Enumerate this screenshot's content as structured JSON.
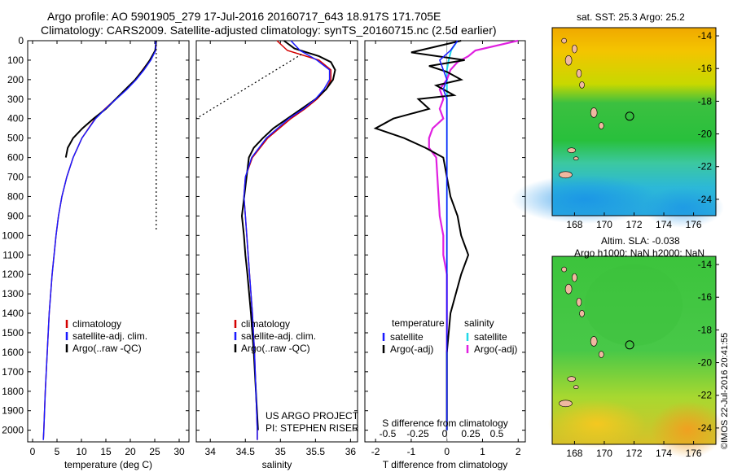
{
  "header": {
    "title_line1": "Argo profile: AO 5901905_279 17-Jul-2016 20160717_643 18.917S 171.705E",
    "title_line2": "Climatology: CARS2009. Satellite-adjusted climatology: synTS_20160715.nc (2.5d earlier)"
  },
  "colors": {
    "climatology": "#d40000",
    "satellite": "#1a1aff",
    "argo": "#000000",
    "salinity_satellite": "#22d8e8",
    "salinity_argo": "#e020e0"
  },
  "chart_data": [
    {
      "type": "line",
      "xlabel": "temperature (deg C)",
      "xlim": [
        -1,
        32
      ],
      "xticks": [
        "0",
        "5",
        "10",
        "15",
        "20",
        "25",
        "30"
      ],
      "ylim": [
        2060,
        0
      ],
      "yticks": [
        "0",
        "100",
        "200",
        "300",
        "400",
        "500",
        "600",
        "700",
        "800",
        "900",
        "1000",
        "1100",
        "1200",
        "1300",
        "1400",
        "1500",
        "1600",
        "1700",
        "1800",
        "1900",
        "2000"
      ],
      "legend": [
        "climatology",
        "satellite-adj. clim.",
        "Argo(..raw -QC)"
      ],
      "series": [
        {
          "name": "climatology",
          "depth": [
            0,
            50,
            100,
            150,
            200,
            250,
            300,
            350,
            400,
            500,
            600,
            700,
            800,
            900,
            1000,
            1200,
            1400,
            1600,
            1800,
            2000,
            2050
          ],
          "values": [
            25.3,
            25.2,
            24.0,
            22.5,
            21.0,
            19.2,
            17.0,
            14.8,
            12.8,
            10.1,
            8.3,
            7.0,
            6.0,
            5.3,
            4.8,
            4.0,
            3.4,
            3.0,
            2.6,
            2.3,
            2.2
          ]
        },
        {
          "name": "satellite-adj. clim.",
          "depth": [
            0,
            50,
            100,
            150,
            200,
            250,
            300,
            350,
            400,
            500,
            600,
            700,
            800,
            900,
            1000,
            1200,
            1400,
            1600,
            1800,
            2000,
            2050
          ],
          "values": [
            25.2,
            25.2,
            24.2,
            22.8,
            21.2,
            19.3,
            17.1,
            14.9,
            12.9,
            10.1,
            8.3,
            7.0,
            6.0,
            5.3,
            4.8,
            4.0,
            3.4,
            3.0,
            2.6,
            2.3,
            2.2
          ]
        },
        {
          "name": "Argo(..raw -QC)",
          "depth": [
            0,
            50,
            100,
            150,
            200,
            250,
            300,
            350,
            400,
            450,
            500,
            550,
            600
          ],
          "values": [
            25.3,
            25.1,
            24.0,
            22.6,
            21.0,
            19.0,
            17.0,
            15.0,
            12.5,
            10.2,
            8.3,
            7.2,
            6.8
          ]
        },
        {
          "name": "satellite SST",
          "depth": [
            0,
            980
          ],
          "values": [
            25.3,
            25.3
          ]
        }
      ]
    },
    {
      "type": "line",
      "xlabel": "salinity",
      "xlim": [
        33.8,
        36.1
      ],
      "xticks": [
        "34",
        "34.5",
        "35",
        "35.5",
        "36"
      ],
      "ylim": [
        2060,
        0
      ],
      "legend": [
        "climatology",
        "satellite-adj. clim.",
        "Argo(..raw -QC)"
      ],
      "annotation": [
        "US ARGO PROJECT",
        "PI: STEPHEN RISER"
      ],
      "series": [
        {
          "name": "climatology",
          "depth": [
            0,
            50,
            100,
            150,
            200,
            250,
            300,
            350,
            400,
            500,
            600,
            700,
            800,
            900,
            1000,
            1200,
            1400,
            1600,
            1800,
            2000,
            2050
          ],
          "values": [
            34.95,
            35.1,
            35.55,
            35.72,
            35.72,
            35.65,
            35.52,
            35.35,
            35.15,
            34.82,
            34.6,
            34.5,
            34.48,
            34.5,
            34.52,
            34.56,
            34.6,
            34.63,
            34.65,
            34.67,
            34.67
          ]
        },
        {
          "name": "satellite-adj. clim.",
          "depth": [
            0,
            50,
            100,
            150,
            200,
            250,
            300,
            350,
            400,
            500,
            600,
            700,
            800,
            900,
            1000,
            1200,
            1400,
            1600,
            1800,
            2000,
            2050
          ],
          "values": [
            35.15,
            35.28,
            35.52,
            35.7,
            35.7,
            35.62,
            35.5,
            35.33,
            35.12,
            34.8,
            34.59,
            34.5,
            34.48,
            34.5,
            34.52,
            34.56,
            34.6,
            34.63,
            34.65,
            34.67,
            34.67
          ]
        },
        {
          "name": "Argo(..raw -QC)",
          "depth": [
            0,
            40,
            80,
            110,
            150,
            200,
            250,
            300,
            350,
            400,
            450,
            500,
            550,
            600,
            900,
            1000,
            1100,
            1200,
            1400,
            1600,
            1800,
            2000
          ],
          "values": [
            35.05,
            35.2,
            35.55,
            35.72,
            35.78,
            35.75,
            35.65,
            35.5,
            35.3,
            35.1,
            34.9,
            34.75,
            34.62,
            34.55,
            34.45,
            34.48,
            34.5,
            34.53,
            34.58,
            34.62,
            34.65,
            34.68
          ]
        },
        {
          "name": "satellite SSS",
          "depth": [
            70,
            400
          ],
          "values": [
            35.3,
            33.8
          ]
        }
      ]
    },
    {
      "type": "line",
      "xlabel": "T difference from climatology",
      "xlim": [
        -2.3,
        2.2
      ],
      "xticks": [
        "-2",
        "-1",
        "0",
        "1",
        "2"
      ],
      "top_xlabel": "S difference from climatology",
      "top_xticks": [
        "-0.5",
        "-0.25",
        "0",
        "0.25",
        "0.5"
      ],
      "ylim": [
        2060,
        0
      ],
      "legend_left_title": "temperature",
      "legend_right_title": "salinity",
      "legend": [
        "satellite",
        "Argo(-adj)",
        "satellite",
        "Argo(-adj)"
      ],
      "series": [
        {
          "name": "temperature satellite",
          "depth": [
            0,
            50,
            100,
            150,
            200,
            250,
            300,
            400,
            600,
            800,
            1000,
            1500,
            2000
          ],
          "values": [
            0.3,
            0.1,
            -0.2,
            -0.1,
            0.0,
            -0.1,
            0.0,
            0.0,
            0.0,
            0.0,
            0.0,
            0.0,
            0.0
          ]
        },
        {
          "name": "temperature Argo(-adj)",
          "depth": [
            0,
            60,
            100,
            130,
            160,
            200,
            230,
            280,
            300,
            350,
            400,
            450,
            500,
            550,
            600,
            700,
            800,
            900,
            1000,
            1100,
            1200,
            1400,
            1600,
            1800,
            2000
          ],
          "values": [
            0.4,
            -1.0,
            0.5,
            -0.5,
            0.0,
            0.4,
            -0.3,
            0.2,
            -0.8,
            -0.5,
            -1.5,
            -2.0,
            -1.2,
            -0.6,
            -0.1,
            0.0,
            0.1,
            0.3,
            0.4,
            0.6,
            0.4,
            0.1,
            0.0,
            0.0,
            0.0
          ]
        },
        {
          "name": "salinity satellite",
          "depth": [
            0,
            50,
            100,
            150,
            200,
            300,
            400,
            600,
            800,
            1000,
            1500,
            2000
          ],
          "values": [
            0.3,
            0.12,
            0.05,
            0.0,
            0.0,
            0.0,
            0.0,
            0.0,
            0.0,
            0.0,
            0.0,
            0.0
          ]
        },
        {
          "name": "salinity Argo(-adj)",
          "depth": [
            0,
            50,
            80,
            110,
            150,
            200,
            250,
            300,
            350,
            400,
            450,
            500,
            550,
            600,
            900,
            1000,
            1100,
            1200,
            1300,
            1400,
            1500,
            1600
          ],
          "values": [
            2.0,
            0.8,
            0.6,
            0.3,
            0.1,
            0.0,
            -0.2,
            -0.1,
            -0.2,
            -0.1,
            -0.4,
            -0.5,
            -0.5,
            -0.3,
            -0.2,
            -0.1,
            -0.1,
            0.0,
            0.0,
            0.0,
            0.0,
            0.0
          ]
        }
      ]
    },
    {
      "type": "heatmap",
      "title": "sat. SST: 25.3 Argo: 25.2",
      "xlim": [
        166.5,
        177.5
      ],
      "ylim": [
        -25,
        -13.5
      ],
      "xticks": [
        "168",
        "170",
        "172",
        "174",
        "176"
      ],
      "yticks": [
        "-14",
        "-16",
        "-18",
        "-20",
        "-22",
        "-24"
      ],
      "marker": {
        "lon": 171.705,
        "lat": -18.917
      }
    },
    {
      "type": "heatmap",
      "title": "Altim. SLA: -0.038",
      "subtitle": "Argo h1000: NaN h2000: NaN",
      "xlim": [
        166.5,
        177.5
      ],
      "ylim": [
        -25,
        -13.5
      ],
      "xticks": [
        "168",
        "170",
        "172",
        "174",
        "176"
      ],
      "yticks": [
        "-14",
        "-16",
        "-18",
        "-20",
        "-22",
        "-24"
      ],
      "marker": {
        "lon": 171.705,
        "lat": -18.917
      }
    }
  ],
  "credit": "©IMOS 22-Jul-2016 20:41:55"
}
